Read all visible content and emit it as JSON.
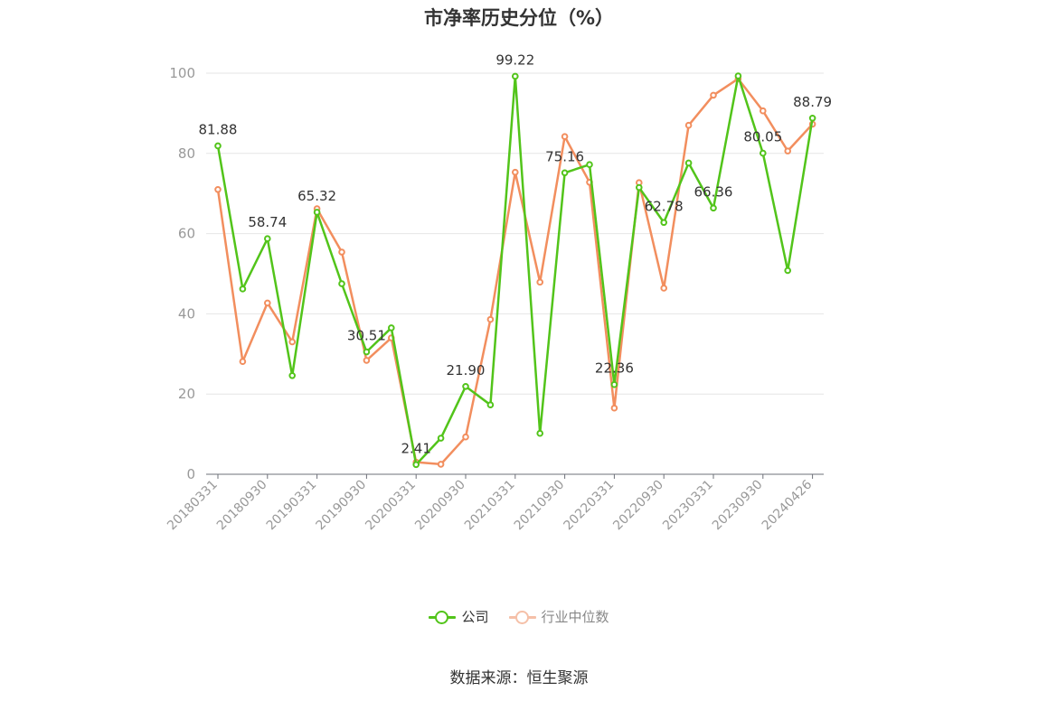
{
  "title": "市净率历史分位（%）",
  "source": "数据来源：恒生聚源",
  "legend": [
    {
      "name": "公司",
      "color": "#52c41a"
    },
    {
      "name": "行业中位数",
      "color": "#f5c0a8"
    }
  ],
  "chart_data": {
    "type": "line",
    "title": "市净率历史分位（%）",
    "ylim": [
      0,
      100
    ],
    "yticks": [
      0,
      20,
      40,
      60,
      80,
      100
    ],
    "grid": true,
    "legend_position": "bottom",
    "x_tick_labels": [
      "20180331",
      "20180930",
      "20190331",
      "20190930",
      "20200331",
      "20200930",
      "20210331",
      "20210930",
      "20220331",
      "20220930",
      "20230331",
      "20230930",
      "20240426"
    ],
    "x": [
      "20180331",
      "20180630",
      "20180930",
      "20181231",
      "20190331",
      "20190630",
      "20190930",
      "20191231",
      "20200331",
      "20200630",
      "20200930",
      "20201231",
      "20210331",
      "20210630",
      "20210930",
      "20211231",
      "20220331",
      "20220630",
      "20220930",
      "20221231",
      "20230331",
      "20230630",
      "20230930",
      "20231231",
      "20240426"
    ],
    "series": [
      {
        "name": "公司",
        "color": "#52c41a",
        "values": [
          81.88,
          46.2,
          58.74,
          24.6,
          65.32,
          47.5,
          30.51,
          36.5,
          2.41,
          9.0,
          21.9,
          17.3,
          99.22,
          10.2,
          75.16,
          77.2,
          22.36,
          71.5,
          62.78,
          77.6,
          66.36,
          99.3,
          80.05,
          50.8,
          88.79
        ],
        "labels": [
          "81.88",
          "",
          "58.74",
          "",
          "65.32",
          "",
          "30.51",
          "",
          "2.41",
          "",
          "21.90",
          "",
          "99.22",
          "",
          "75.16",
          "",
          "22.36",
          "",
          "62.78",
          "",
          "66.36",
          "",
          "80.05",
          "",
          "88.79"
        ]
      },
      {
        "name": "行业中位数",
        "color": "#f28e5e",
        "values": [
          71.0,
          28.1,
          42.7,
          33.0,
          66.2,
          55.4,
          28.4,
          34.0,
          3.0,
          2.5,
          9.3,
          38.6,
          75.3,
          47.9,
          84.2,
          72.8,
          16.5,
          72.7,
          46.4,
          87.0,
          94.5,
          98.6,
          90.6,
          80.6,
          87.3
        ]
      }
    ]
  }
}
